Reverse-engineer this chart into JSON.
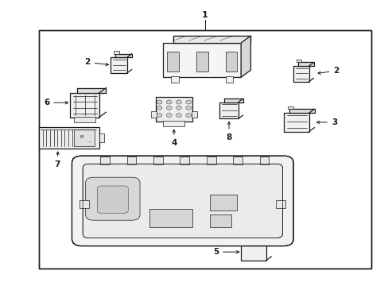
{
  "background_color": "#ffffff",
  "line_color": "#1a1a1a",
  "fig_width": 4.89,
  "fig_height": 3.6,
  "dpi": 100,
  "border": [
    0.1,
    0.06,
    0.955,
    0.895
  ]
}
